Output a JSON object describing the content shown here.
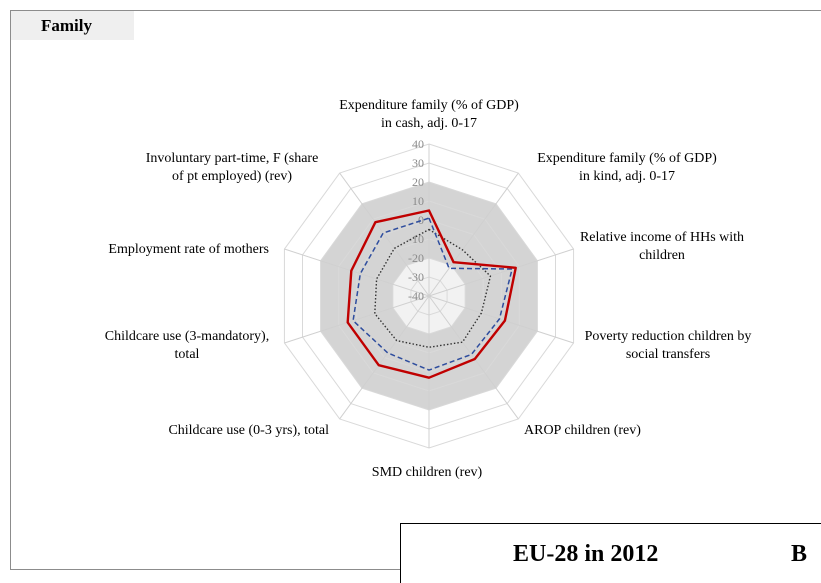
{
  "panel": {
    "title": "Family"
  },
  "legend_box": {
    "text_left": "EU-28 in 2012",
    "text_right": "B"
  },
  "chart_data": {
    "type": "radar",
    "r_range": [
      -40,
      40
    ],
    "r_ticks": [
      40,
      30,
      20,
      10,
      0,
      -10,
      -20,
      -30,
      -40
    ],
    "band_outer": 20,
    "band_inner": -20,
    "axes": [
      {
        "label": [
          "Expenditure family (% of GDP)",
          "in cash, adj. 0-17"
        ]
      },
      {
        "label": [
          "Expenditure family (% of GDP)",
          "in kind, adj. 0-17"
        ]
      },
      {
        "label": [
          "Relative income of HHs with",
          "children"
        ]
      },
      {
        "label": [
          "Poverty reduction children by",
          "social transfers"
        ]
      },
      {
        "label": [
          "AROP children (rev)"
        ]
      },
      {
        "label": [
          "SMD children (rev)"
        ]
      },
      {
        "label": [
          "Childcare use (0-3 yrs), total"
        ]
      },
      {
        "label": [
          "Childcare use (3-mandatory),",
          "total"
        ]
      },
      {
        "label": [
          "Employment rate of mothers"
        ]
      },
      {
        "label": [
          "Involuntary part-time, F (share",
          "of pt employed) (rev)"
        ]
      }
    ],
    "series": [
      {
        "style": "solid-red",
        "color": "#c00000",
        "values": [
          5,
          -18,
          8,
          2,
          1,
          3,
          5,
          5,
          3,
          8
        ]
      },
      {
        "style": "dashed-blue",
        "color": "#2e4d9e",
        "values": [
          1,
          -22,
          6,
          -1,
          -2,
          -1,
          -3,
          2,
          -2,
          1
        ]
      },
      {
        "style": "dotted-black",
        "color": "#333333",
        "values": [
          -5,
          -10,
          -6,
          -11,
          -10,
          -13,
          -11,
          -10,
          -11,
          -9
        ]
      }
    ],
    "grid": true,
    "band_color": "#d4d4d4",
    "inner_color": "#f2f2f2"
  }
}
